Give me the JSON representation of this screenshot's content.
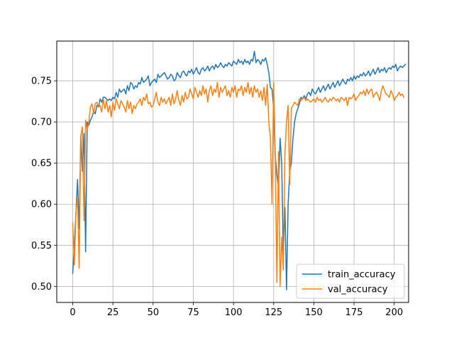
{
  "chart_data": {
    "type": "line",
    "title": "",
    "xlabel": "",
    "ylabel": "",
    "xlim": [
      -9.95,
      208.95
    ],
    "ylim": [
      0.4805,
      0.7983
    ],
    "x_ticks": [
      0,
      25,
      50,
      75,
      100,
      125,
      150,
      175,
      200
    ],
    "y_ticks": [
      0.5,
      0.55,
      0.6,
      0.65,
      0.7,
      0.75
    ],
    "y_tick_labels": [
      "0.50",
      "0.55",
      "0.60",
      "0.65",
      "0.70",
      "0.75"
    ],
    "grid": true,
    "legend_position": "lower-right",
    "series": [
      {
        "name": "train_accuracy",
        "color": "#1f77b4",
        "values": [
          0.516,
          0.552,
          0.59,
          0.63,
          0.57,
          0.682,
          0.64,
          0.686,
          0.542,
          0.7,
          0.696,
          0.702,
          0.706,
          0.713,
          0.71,
          0.72,
          0.718,
          0.728,
          0.724,
          0.73,
          0.73,
          0.728,
          0.726,
          0.728,
          0.726,
          0.73,
          0.728,
          0.736,
          0.73,
          0.74,
          0.736,
          0.738,
          0.74,
          0.734,
          0.744,
          0.738,
          0.748,
          0.746,
          0.74,
          0.744,
          0.742,
          0.748,
          0.746,
          0.754,
          0.748,
          0.75,
          0.752,
          0.756,
          0.744,
          0.748,
          0.75,
          0.752,
          0.748,
          0.758,
          0.754,
          0.756,
          0.758,
          0.76,
          0.756,
          0.752,
          0.754,
          0.758,
          0.756,
          0.75,
          0.752,
          0.76,
          0.756,
          0.754,
          0.76,
          0.762,
          0.758,
          0.756,
          0.762,
          0.76,
          0.764,
          0.758,
          0.762,
          0.766,
          0.76,
          0.758,
          0.764,
          0.766,
          0.762,
          0.764,
          0.768,
          0.762,
          0.766,
          0.768,
          0.764,
          0.77,
          0.766,
          0.768,
          0.772,
          0.768,
          0.766,
          0.77,
          0.768,
          0.772,
          0.77,
          0.768,
          0.774,
          0.772,
          0.77,
          0.776,
          0.772,
          0.774,
          0.77,
          0.776,
          0.772,
          0.774,
          0.77,
          0.776,
          0.774,
          0.786,
          0.772,
          0.776,
          0.774,
          0.77,
          0.776,
          0.774,
          0.778,
          0.77,
          0.76,
          0.742,
          0.74,
          0.716,
          0.658,
          0.636,
          0.62,
          0.68,
          0.65,
          0.54,
          0.596,
          0.496,
          0.6,
          0.64,
          0.65,
          0.68,
          0.7,
          0.71,
          0.716,
          0.722,
          0.73,
          0.728,
          0.732,
          0.728,
          0.734,
          0.736,
          0.732,
          0.74,
          0.736,
          0.734,
          0.738,
          0.742,
          0.736,
          0.74,
          0.744,
          0.738,
          0.742,
          0.746,
          0.74,
          0.744,
          0.748,
          0.742,
          0.746,
          0.75,
          0.744,
          0.748,
          0.752,
          0.748,
          0.746,
          0.752,
          0.75,
          0.754,
          0.75,
          0.756,
          0.752,
          0.756,
          0.754,
          0.758,
          0.756,
          0.76,
          0.756,
          0.758,
          0.762,
          0.756,
          0.76,
          0.764,
          0.758,
          0.762,
          0.766,
          0.76,
          0.764,
          0.762,
          0.766,
          0.76,
          0.764,
          0.766,
          0.764,
          0.768,
          0.766,
          0.77,
          0.762,
          0.766,
          0.768,
          0.766,
          0.768,
          0.77
        ]
      },
      {
        "name": "val_accuracy",
        "color": "#ff7f0e",
        "values": [
          0.577,
          0.526,
          0.59,
          0.61,
          0.522,
          0.683,
          0.694,
          0.58,
          0.702,
          0.69,
          0.7,
          0.718,
          0.722,
          0.71,
          0.722,
          0.724,
          0.718,
          0.72,
          0.712,
          0.728,
          0.716,
          0.726,
          0.712,
          0.72,
          0.706,
          0.724,
          0.714,
          0.728,
          0.722,
          0.716,
          0.726,
          0.722,
          0.718,
          0.712,
          0.726,
          0.716,
          0.724,
          0.71,
          0.72,
          0.716,
          0.722,
          0.724,
          0.728,
          0.72,
          0.73,
          0.726,
          0.734,
          0.722,
          0.724,
          0.718,
          0.72,
          0.728,
          0.736,
          0.724,
          0.72,
          0.73,
          0.724,
          0.728,
          0.722,
          0.726,
          0.73,
          0.72,
          0.734,
          0.722,
          0.728,
          0.738,
          0.726,
          0.72,
          0.732,
          0.724,
          0.736,
          0.728,
          0.73,
          0.74,
          0.734,
          0.728,
          0.742,
          0.736,
          0.73,
          0.738,
          0.732,
          0.744,
          0.734,
          0.74,
          0.724,
          0.738,
          0.744,
          0.732,
          0.74,
          0.736,
          0.748,
          0.73,
          0.742,
          0.736,
          0.74,
          0.744,
          0.732,
          0.738,
          0.73,
          0.742,
          0.736,
          0.744,
          0.73,
          0.74,
          0.738,
          0.744,
          0.732,
          0.742,
          0.736,
          0.748,
          0.734,
          0.742,
          0.73,
          0.744,
          0.736,
          0.74,
          0.73,
          0.738,
          0.726,
          0.742,
          0.72,
          0.746,
          0.7,
          0.68,
          0.6,
          0.748,
          0.66,
          0.505,
          0.664,
          0.5,
          0.56,
          0.52,
          0.66,
          0.7,
          0.72,
          0.624,
          0.716,
          0.72,
          0.724,
          0.722,
          0.72,
          0.728,
          0.726,
          0.728,
          0.73,
          0.726,
          0.728,
          0.726,
          0.724,
          0.726,
          0.728,
          0.724,
          0.73,
          0.726,
          0.728,
          0.724,
          0.726,
          0.73,
          0.726,
          0.724,
          0.728,
          0.726,
          0.73,
          0.728,
          0.726,
          0.728,
          0.724,
          0.73,
          0.728,
          0.726,
          0.73,
          0.72,
          0.73,
          0.728,
          0.73,
          0.734,
          0.726,
          0.73,
          0.732,
          0.736,
          0.734,
          0.738,
          0.732,
          0.74,
          0.734,
          0.738,
          0.74,
          0.73,
          0.734,
          0.736,
          0.732,
          0.726,
          0.738,
          0.744,
          0.738,
          0.734,
          0.732,
          0.73,
          0.738,
          0.734,
          0.726,
          0.73,
          0.732,
          0.736,
          0.732,
          0.734,
          0.73
        ]
      }
    ]
  }
}
